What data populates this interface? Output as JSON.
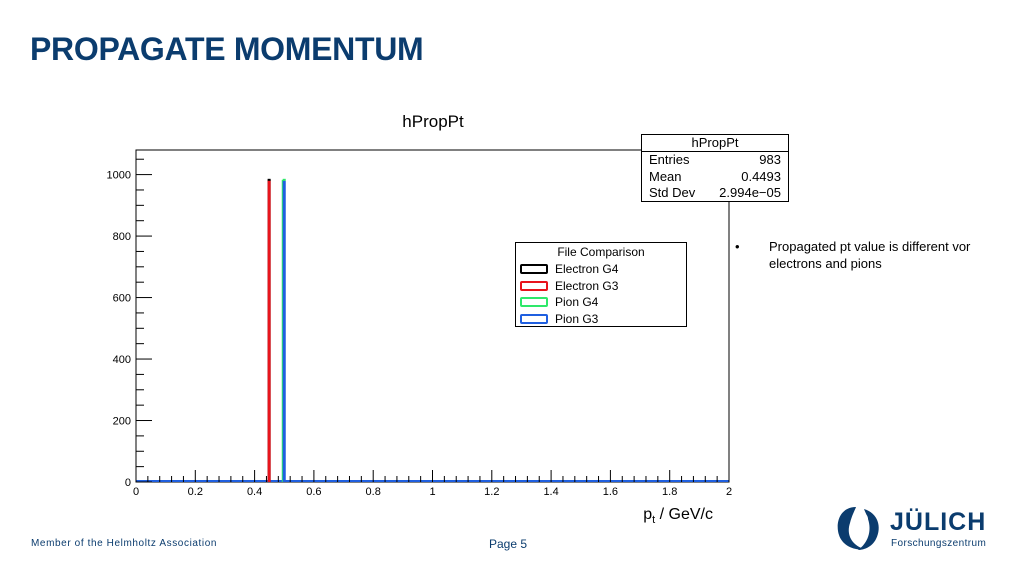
{
  "slide": {
    "title": "PROPAGATE MOMENTUM",
    "footer_left": "Member of the Helmholtz Association",
    "page_label": "Page 5",
    "bullets": [
      "Propagated pt value is different vor electrons and pions"
    ],
    "logo": {
      "name": "JÜLICH",
      "subtitle": "Forschungszentrum",
      "color": "#0b3c6e"
    }
  },
  "stats_box": {
    "title": "hPropPt",
    "rows": [
      {
        "label": "Entries",
        "value": "983"
      },
      {
        "label": "Mean",
        "value": "0.4493"
      },
      {
        "label": "Std Dev",
        "value": "2.994e−05"
      }
    ]
  },
  "chart_data": {
    "type": "bar",
    "title": "hPropPt",
    "xlabel": "p",
    "xlabel_sub": "t",
    "xlabel_suffix": " / GeV/c",
    "ylabel": "",
    "xlim": [
      0,
      2
    ],
    "ylim": [
      0,
      1080
    ],
    "x_ticks": [
      0,
      0.2,
      0.4,
      0.6,
      0.8,
      1,
      1.2,
      1.4,
      1.6,
      1.8,
      2
    ],
    "x_tick_labels": [
      "0",
      "0.2",
      "0.4",
      "0.6",
      "0.8",
      "1",
      "1.2",
      "1.4",
      "1.6",
      "1.8",
      "2"
    ],
    "y_ticks": [
      0,
      200,
      400,
      600,
      800,
      1000
    ],
    "y_tick_labels": [
      "0",
      "200",
      "400",
      "600",
      "800",
      "1000"
    ],
    "grid": false,
    "legend": {
      "title": "File Comparison",
      "placement": "center-right"
    },
    "series": [
      {
        "name": "Electron G4",
        "color": "#000000",
        "x": 0.449,
        "value": 983
      },
      {
        "name": "Electron G3",
        "color": "#e8141c",
        "x": 0.449,
        "value": 983
      },
      {
        "name": "Pion G4",
        "color": "#2ee86a",
        "x": 0.5,
        "value": 983
      },
      {
        "name": "Pion G3",
        "color": "#1f5fe0",
        "x": 0.5,
        "value": 980
      }
    ]
  }
}
